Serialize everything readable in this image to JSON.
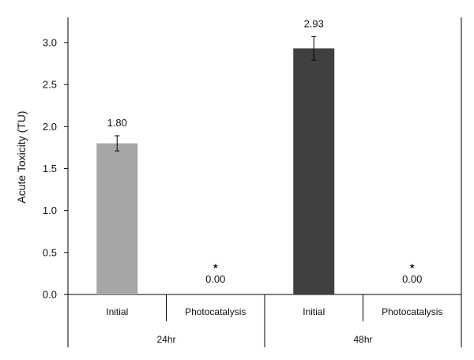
{
  "chart_data": {
    "type": "bar",
    "ylabel": "Acute Toxicity (TU)",
    "ylim": [
      0,
      3.3
    ],
    "yticks": [
      "0.0",
      "0.5",
      "1.0",
      "1.5",
      "2.0",
      "2.5",
      "3.0"
    ],
    "grid": false,
    "legend": "none",
    "groups": [
      {
        "label": "24hr",
        "bars": [
          {
            "category": "Initial",
            "value": 1.8,
            "error": 0.09,
            "label": "1.80",
            "marker": "",
            "color": "#a6a6a6"
          },
          {
            "category": "Photocatalysis",
            "value": 0.0,
            "error": 0,
            "label": "0.00",
            "marker": "*",
            "color": "#a6a6a6"
          }
        ]
      },
      {
        "label": "48hr",
        "bars": [
          {
            "category": "Initial",
            "value": 2.93,
            "error": 0.14,
            "label": "2.93",
            "marker": "",
            "color": "#404040"
          },
          {
            "category": "Photocatalysis",
            "value": 0.0,
            "error": 0,
            "label": "0.00",
            "marker": "*",
            "color": "#404040"
          }
        ]
      }
    ]
  }
}
